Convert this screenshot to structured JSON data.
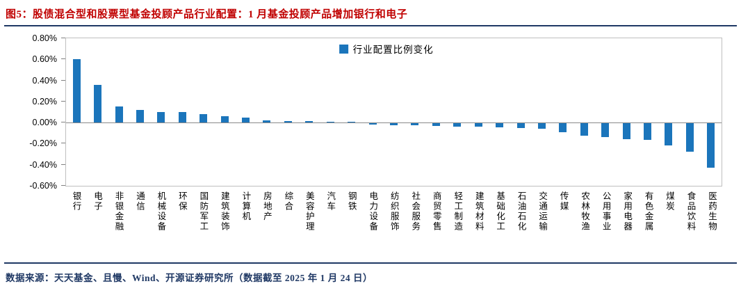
{
  "header": {
    "title": "图5：股债混合型和股票型基金投顾产品行业配置：1 月基金投顾产品增加银行和电子"
  },
  "footer": {
    "source": "数据来源：天天基金、且慢、Wind、开源证券研究所（数据截至 2025 年 1 月 24 日）"
  },
  "colors": {
    "bar": "#1B75BB",
    "title_red": "#C00000",
    "rule_navy": "#1F3864"
  },
  "chart_data": {
    "type": "bar",
    "legend": [
      "行业配置比例变化"
    ],
    "categories": [
      "银行",
      "电子",
      "非银金融",
      "通信",
      "机械设备",
      "环保",
      "国防军工",
      "建筑装饰",
      "计算机",
      "房地产",
      "综合",
      "美容护理",
      "汽车",
      "钢铁",
      "电力设备",
      "纺织服饰",
      "社会服务",
      "商贸零售",
      "轻工制造",
      "建筑材料",
      "基础化工",
      "石油石化",
      "交通运输",
      "传媒",
      "农林牧渔",
      "公用事业",
      "家用电器",
      "有色金属",
      "煤炭",
      "食品饮料",
      "医药生物"
    ],
    "values": [
      0.6,
      0.36,
      0.15,
      0.12,
      0.1,
      0.1,
      0.08,
      0.06,
      0.05,
      0.02,
      0.015,
      0.012,
      0.01,
      0.005,
      -0.015,
      -0.02,
      -0.022,
      -0.025,
      -0.03,
      -0.035,
      -0.04,
      -0.045,
      -0.05,
      -0.085,
      -0.12,
      -0.13,
      -0.15,
      -0.16,
      -0.21,
      -0.27,
      -0.42
    ],
    "value_unit": "%",
    "ylim": [
      -0.6,
      0.8
    ],
    "yticks": [
      0.8,
      0.6,
      0.4,
      0.2,
      0.0,
      -0.2,
      -0.4,
      -0.6
    ],
    "ytick_labels": [
      "0.80%",
      "0.60%",
      "0.40%",
      "0.20%",
      "0.00%",
      "-0.20%",
      "-0.40%",
      "-0.60%"
    ],
    "grid": false,
    "legend_position": "top-center",
    "bar_color": "#1B75BB"
  }
}
